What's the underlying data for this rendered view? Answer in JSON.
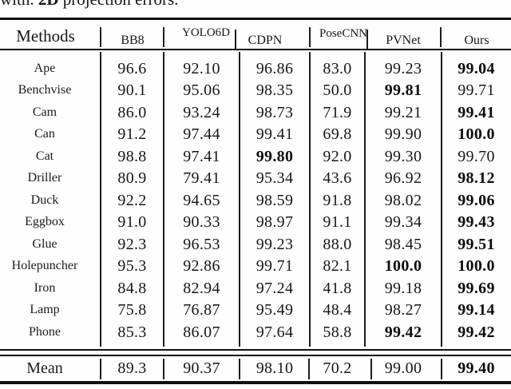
{
  "caption": {
    "prefix": "with. ",
    "bold_term": "2D",
    "suffix": " projection errors."
  },
  "chart_data": {
    "type": "table",
    "columns": [
      "Methods",
      "BB8",
      "YOLO6D",
      "CDPN",
      "PoseCNN",
      "PVNet",
      "Ours"
    ],
    "rows": [
      {
        "label": "Ape",
        "values": [
          "96.6",
          "92.10",
          "96.86",
          "83.0",
          "99.23",
          "99.04"
        ],
        "bold": [
          false,
          false,
          false,
          false,
          false,
          true
        ]
      },
      {
        "label": "Benchvise",
        "values": [
          "90.1",
          "95.06",
          "98.35",
          "50.0",
          "99.81",
          "99.71"
        ],
        "bold": [
          false,
          false,
          false,
          false,
          true,
          false
        ]
      },
      {
        "label": "Cam",
        "values": [
          "86.0",
          "93.24",
          "98.73",
          "71.9",
          "99.21",
          "99.41"
        ],
        "bold": [
          false,
          false,
          false,
          false,
          false,
          true
        ]
      },
      {
        "label": "Can",
        "values": [
          "91.2",
          "97.44",
          "99.41",
          "69.8",
          "99.90",
          "100.0"
        ],
        "bold": [
          false,
          false,
          false,
          false,
          false,
          true
        ]
      },
      {
        "label": "Cat",
        "values": [
          "98.8",
          "97.41",
          "99.80",
          "92.0",
          "99.30",
          "99.70"
        ],
        "bold": [
          false,
          false,
          true,
          false,
          false,
          false
        ]
      },
      {
        "label": "Driller",
        "values": [
          "80.9",
          "79.41",
          "95.34",
          "43.6",
          "96.92",
          "98.12"
        ],
        "bold": [
          false,
          false,
          false,
          false,
          false,
          true
        ]
      },
      {
        "label": "Duck",
        "values": [
          "92.2",
          "94.65",
          "98.59",
          "91.8",
          "98.02",
          "99.06"
        ],
        "bold": [
          false,
          false,
          false,
          false,
          false,
          true
        ]
      },
      {
        "label": "Eggbox",
        "values": [
          "91.0",
          "90.33",
          "98.97",
          "91.1",
          "99.34",
          "99.43"
        ],
        "bold": [
          false,
          false,
          false,
          false,
          false,
          true
        ]
      },
      {
        "label": "Glue",
        "values": [
          "92.3",
          "96.53",
          "99.23",
          "88.0",
          "98.45",
          "99.51"
        ],
        "bold": [
          false,
          false,
          false,
          false,
          false,
          true
        ]
      },
      {
        "label": "Holepuncher",
        "values": [
          "95.3",
          "92.86",
          "99.71",
          "82.1",
          "100.0",
          "100.0"
        ],
        "bold": [
          false,
          false,
          false,
          false,
          true,
          true
        ]
      },
      {
        "label": "Iron",
        "values": [
          "84.8",
          "82.94",
          "97.24",
          "41.8",
          "99.18",
          "99.69"
        ],
        "bold": [
          false,
          false,
          false,
          false,
          false,
          true
        ]
      },
      {
        "label": "Lamp",
        "values": [
          "75.8",
          "76.87",
          "95.49",
          "48.4",
          "98.27",
          "99.14"
        ],
        "bold": [
          false,
          false,
          false,
          false,
          false,
          true
        ]
      },
      {
        "label": "Phone",
        "values": [
          "85.3",
          "86.07",
          "97.64",
          "58.8",
          "99.42",
          "99.42"
        ],
        "bold": [
          false,
          false,
          false,
          false,
          true,
          true
        ]
      }
    ],
    "mean_row": {
      "label": "Mean",
      "values": [
        "89.3",
        "90.37",
        "98.10",
        "70.2",
        "99.00",
        "99.40"
      ],
      "bold": [
        false,
        false,
        false,
        false,
        false,
        true
      ]
    }
  }
}
